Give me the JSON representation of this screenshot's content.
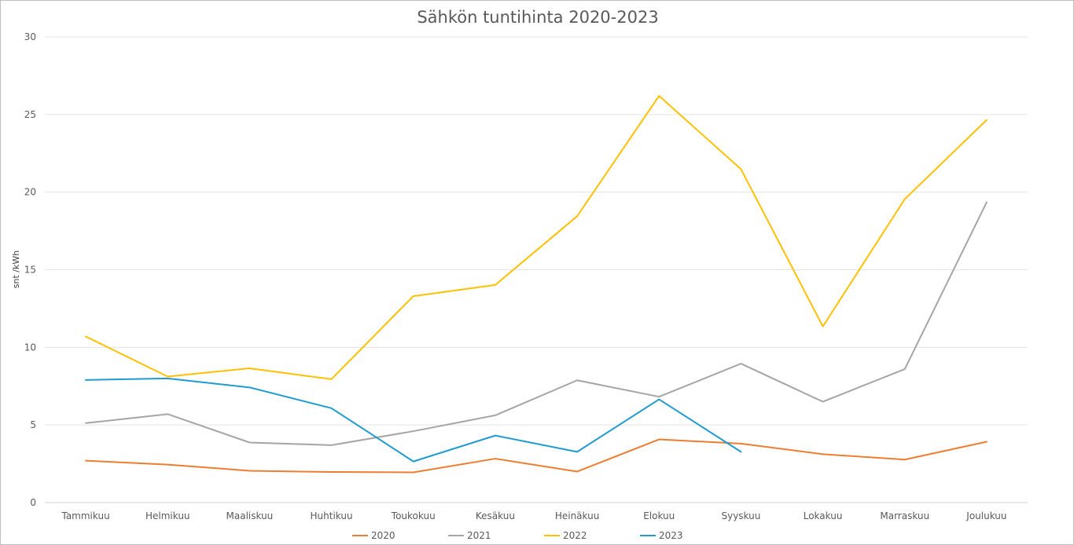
{
  "chart_data": {
    "type": "line",
    "title": "Sähkön tuntihinta 2020-2023",
    "xlabel": "",
    "ylabel": "snt /kWh",
    "ylim": [
      0,
      30
    ],
    "yticks": [
      0,
      5,
      10,
      15,
      20,
      25,
      30
    ],
    "grid": true,
    "legend_position": "bottom",
    "categories": [
      "Tammikuu",
      "Helmikuu",
      "Maaliskuu",
      "Huhtikuu",
      "Toukokuu",
      "Kesäkuu",
      "Heinäkuu",
      "Elokuu",
      "Syyskuu",
      "Lokakuu",
      "Marraskuu",
      "Joulukuu"
    ],
    "series": [
      {
        "name": "2020",
        "color": "#ed7d31",
        "values": [
          2.7,
          2.45,
          2.05,
          1.97,
          1.95,
          2.83,
          2.0,
          4.07,
          3.8,
          3.12,
          2.77,
          3.92
        ]
      },
      {
        "name": "2021",
        "color": "#a5a5a5",
        "values": [
          5.12,
          5.7,
          3.87,
          3.7,
          4.6,
          5.62,
          7.88,
          6.82,
          8.95,
          6.5,
          8.6,
          19.35
        ]
      },
      {
        "name": "2022",
        "color": "#ffc000",
        "values": [
          10.7,
          8.12,
          8.65,
          7.95,
          13.3,
          14.02,
          18.45,
          26.2,
          21.48,
          11.35,
          19.55,
          24.65
        ]
      },
      {
        "name": "2023",
        "color": "#1f9bd1",
        "values": [
          7.9,
          8.0,
          7.42,
          6.08,
          2.65,
          4.32,
          3.27,
          6.65,
          3.27,
          null,
          null,
          null
        ]
      }
    ]
  }
}
